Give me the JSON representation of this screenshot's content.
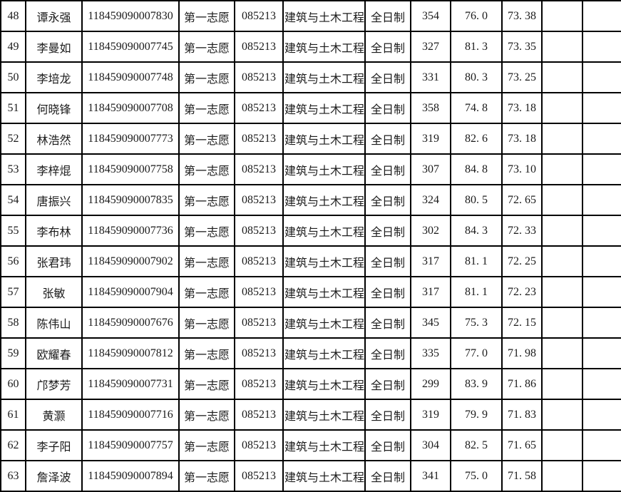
{
  "colors": {
    "background": "#ffffff",
    "grid_border": "#000000",
    "text": "#1b1b1b"
  },
  "table": {
    "columns": [
      "rank",
      "name",
      "candidate-id",
      "volunteer",
      "major-code",
      "major-name",
      "study-mode",
      "initial-score",
      "retest-score",
      "total-score",
      "empty-1",
      "empty-2"
    ],
    "rows": [
      [
        "48",
        "谭永强",
        "118459090007830",
        "第一志愿",
        "085213",
        "建筑与土木工程",
        "全日制",
        "354",
        "76.0",
        "73.38",
        "",
        ""
      ],
      [
        "49",
        "李曼如",
        "118459090007745",
        "第一志愿",
        "085213",
        "建筑与土木工程",
        "全日制",
        "327",
        "81.3",
        "73.35",
        "",
        ""
      ],
      [
        "50",
        "李培龙",
        "118459090007748",
        "第一志愿",
        "085213",
        "建筑与土木工程",
        "全日制",
        "331",
        "80.3",
        "73.25",
        "",
        ""
      ],
      [
        "51",
        "何晓锋",
        "118459090007708",
        "第一志愿",
        "085213",
        "建筑与土木工程",
        "全日制",
        "358",
        "74.8",
        "73.18",
        "",
        ""
      ],
      [
        "52",
        "林浩然",
        "118459090007773",
        "第一志愿",
        "085213",
        "建筑与土木工程",
        "全日制",
        "319",
        "82.6",
        "73.18",
        "",
        ""
      ],
      [
        "53",
        "李梓焜",
        "118459090007758",
        "第一志愿",
        "085213",
        "建筑与土木工程",
        "全日制",
        "307",
        "84.8",
        "73.10",
        "",
        ""
      ],
      [
        "54",
        "唐振兴",
        "118459090007835",
        "第一志愿",
        "085213",
        "建筑与土木工程",
        "全日制",
        "324",
        "80.5",
        "72.65",
        "",
        ""
      ],
      [
        "55",
        "李布林",
        "118459090007736",
        "第一志愿",
        "085213",
        "建筑与土木工程",
        "全日制",
        "302",
        "84.3",
        "72.33",
        "",
        ""
      ],
      [
        "56",
        "张君玮",
        "118459090007902",
        "第一志愿",
        "085213",
        "建筑与土木工程",
        "全日制",
        "317",
        "81.1",
        "72.25",
        "",
        ""
      ],
      [
        "57",
        "张敏",
        "118459090007904",
        "第一志愿",
        "085213",
        "建筑与土木工程",
        "全日制",
        "317",
        "81.1",
        "72.23",
        "",
        ""
      ],
      [
        "58",
        "陈伟山",
        "118459090007676",
        "第一志愿",
        "085213",
        "建筑与土木工程",
        "全日制",
        "345",
        "75.3",
        "72.15",
        "",
        ""
      ],
      [
        "59",
        "欧耀春",
        "118459090007812",
        "第一志愿",
        "085213",
        "建筑与土木工程",
        "全日制",
        "335",
        "77.0",
        "71.98",
        "",
        ""
      ],
      [
        "60",
        "邝梦芳",
        "118459090007731",
        "第一志愿",
        "085213",
        "建筑与土木工程",
        "全日制",
        "299",
        "83.9",
        "71.86",
        "",
        ""
      ],
      [
        "61",
        "黄灏",
        "118459090007716",
        "第一志愿",
        "085213",
        "建筑与土木工程",
        "全日制",
        "319",
        "79.9",
        "71.83",
        "",
        ""
      ],
      [
        "62",
        "李子阳",
        "118459090007757",
        "第一志愿",
        "085213",
        "建筑与土木工程",
        "全日制",
        "304",
        "82.5",
        "71.65",
        "",
        ""
      ],
      [
        "63",
        "詹泽波",
        "118459090007894",
        "第一志愿",
        "085213",
        "建筑与土木工程",
        "全日制",
        "341",
        "75.0",
        "71.58",
        "",
        ""
      ]
    ]
  }
}
